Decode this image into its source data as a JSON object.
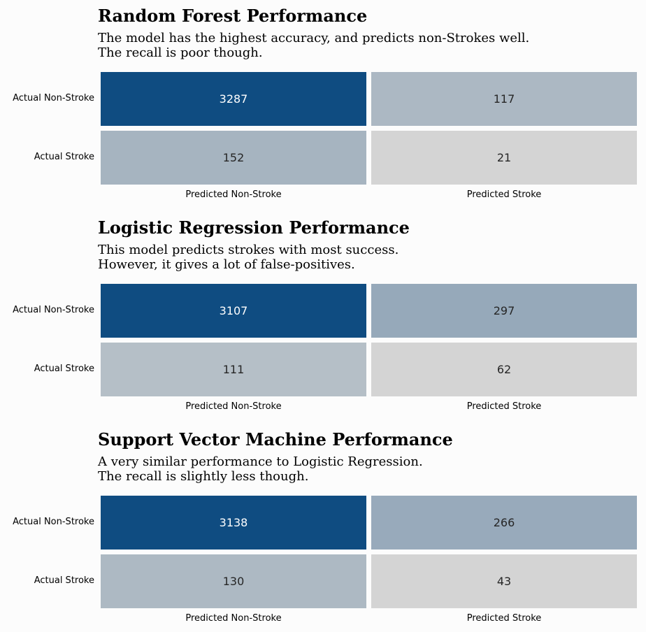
{
  "panels": [
    {
      "title": "Random Forest Performance",
      "subtitle_lines": [
        "The model has the highest accuracy, and predicts non-Strokes well.",
        "The recall is poor though."
      ]
    },
    {
      "title": "Logistic Regression Performance",
      "subtitle_lines": [
        "This model predicts strokes with most success.",
        "However, it gives a lot of false-positives."
      ]
    },
    {
      "title": "Support Vector Machine Performance",
      "subtitle_lines": [
        "A very similar performance to Logistic Regression.",
        "The recall is slightly less though."
      ]
    }
  ],
  "colors": {
    "high": "#0f4c81",
    "low": "#d4d4d4",
    "text_light": "#ffffff",
    "text_dark": "#262626"
  },
  "chart_data": [
    {
      "type": "heatmap",
      "title": "Random Forest Performance",
      "row_labels": [
        "Actual Non-Stroke",
        "Actual Stroke"
      ],
      "col_labels": [
        "Predicted Non-Stroke",
        "Predicted Stroke"
      ],
      "values": [
        [
          3287,
          117
        ],
        [
          152,
          21
        ]
      ]
    },
    {
      "type": "heatmap",
      "title": "Logistic Regression Performance",
      "row_labels": [
        "Actual Non-Stroke",
        "Actual Stroke"
      ],
      "col_labels": [
        "Predicted Non-Stroke",
        "Predicted Stroke"
      ],
      "values": [
        [
          3107,
          297
        ],
        [
          111,
          62
        ]
      ]
    },
    {
      "type": "heatmap",
      "title": "Support Vector Machine Performance",
      "row_labels": [
        "Actual Non-Stroke",
        "Actual Stroke"
      ],
      "col_labels": [
        "Predicted Non-Stroke",
        "Predicted Stroke"
      ],
      "values": [
        [
          3138,
          266
        ],
        [
          130,
          43
        ]
      ]
    }
  ]
}
